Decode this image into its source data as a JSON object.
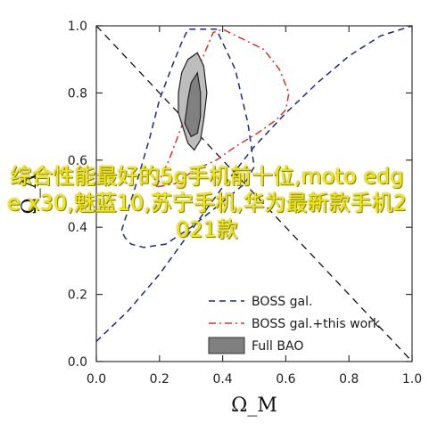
{
  "chart_data": {
    "type": "line",
    "title": "",
    "xlabel": "Ω_M",
    "ylabel": "Ω_Λ",
    "xlim": [
      0,
      1
    ],
    "ylim": [
      0,
      1
    ],
    "x_ticks": [
      "0.0",
      "0.2",
      "0.4",
      "0.6",
      "0.8",
      "1.0"
    ],
    "y_ticks": [
      "0.0",
      "0.2",
      "0.4",
      "0.6",
      "0.8",
      "1.0"
    ],
    "grid": false,
    "legend_position": "bottom-right",
    "reference_line": {
      "style": "dashed",
      "color": "#111111",
      "points": [
        [
          0.0,
          1.0
        ],
        [
          1.0,
          0.0
        ]
      ]
    },
    "series": [
      {
        "name": "BOSS gal.",
        "style": "dashed",
        "color": "#1f2a7a",
        "contours": [
          [
            [
              0.0,
              0.06
            ],
            [
              0.1,
              0.15
            ],
            [
              0.2,
              0.26
            ],
            [
              0.3,
              0.39
            ],
            [
              0.4,
              0.52
            ],
            [
              0.5,
              0.64
            ],
            [
              0.6,
              0.74
            ],
            [
              0.7,
              0.83
            ],
            [
              0.8,
              0.91
            ],
            [
              0.9,
              0.97
            ],
            [
              1.0,
              1.0
            ]
          ],
          [
            [
              0.08,
              0.39
            ],
            [
              0.13,
              0.54
            ],
            [
              0.17,
              0.67
            ],
            [
              0.2,
              0.78
            ],
            [
              0.24,
              0.88
            ],
            [
              0.27,
              0.95
            ],
            [
              0.29,
              0.99
            ],
            [
              0.38,
              0.99
            ],
            [
              0.44,
              0.87
            ],
            [
              0.48,
              0.71
            ],
            [
              0.5,
              0.58
            ],
            [
              0.47,
              0.53
            ],
            [
              0.38,
              0.46
            ],
            [
              0.3,
              0.4
            ],
            [
              0.22,
              0.35
            ],
            [
              0.15,
              0.34
            ],
            [
              0.11,
              0.35
            ],
            [
              0.09,
              0.37
            ],
            [
              0.08,
              0.39
            ]
          ]
        ]
      },
      {
        "name": "BOSS gal.+this work",
        "style": "dashdot",
        "color": "#d1352b",
        "contours": [
          [
            [
              0.19,
              0.52
            ],
            [
              0.23,
              0.6
            ],
            [
              0.27,
              0.7
            ],
            [
              0.3,
              0.79
            ],
            [
              0.33,
              0.89
            ],
            [
              0.37,
              0.98
            ],
            [
              0.4,
              0.99
            ],
            [
              0.53,
              0.93
            ],
            [
              0.58,
              0.87
            ],
            [
              0.61,
              0.8
            ],
            [
              0.6,
              0.75
            ],
            [
              0.57,
              0.72
            ],
            [
              0.51,
              0.68
            ],
            [
              0.44,
              0.64
            ],
            [
              0.38,
              0.6
            ],
            [
              0.31,
              0.57
            ],
            [
              0.25,
              0.53
            ],
            [
              0.19,
              0.52
            ]
          ]
        ]
      },
      {
        "name": "Full BAO",
        "style": "filled",
        "color": "#808080",
        "contours": [
          [
            [
              0.27,
              0.71
            ],
            [
              0.26,
              0.74
            ],
            [
              0.26,
              0.8
            ],
            [
              0.27,
              0.86
            ],
            [
              0.29,
              0.9
            ],
            [
              0.32,
              0.92
            ],
            [
              0.34,
              0.88
            ],
            [
              0.35,
              0.8
            ],
            [
              0.34,
              0.72
            ],
            [
              0.33,
              0.66
            ],
            [
              0.31,
              0.63
            ],
            [
              0.29,
              0.65
            ],
            [
              0.27,
              0.71
            ]
          ],
          [
            [
              0.28,
              0.71
            ],
            [
              0.29,
              0.78
            ],
            [
              0.3,
              0.83
            ],
            [
              0.32,
              0.86
            ],
            [
              0.33,
              0.8
            ],
            [
              0.33,
              0.73
            ],
            [
              0.32,
              0.68
            ],
            [
              0.3,
              0.67
            ],
            [
              0.28,
              0.71
            ]
          ]
        ]
      }
    ]
  },
  "overlay_text": "综合性能最好的5g手机前十位,moto edge x30,魅蓝10,苏宁手机,华为最新款手机2021款"
}
